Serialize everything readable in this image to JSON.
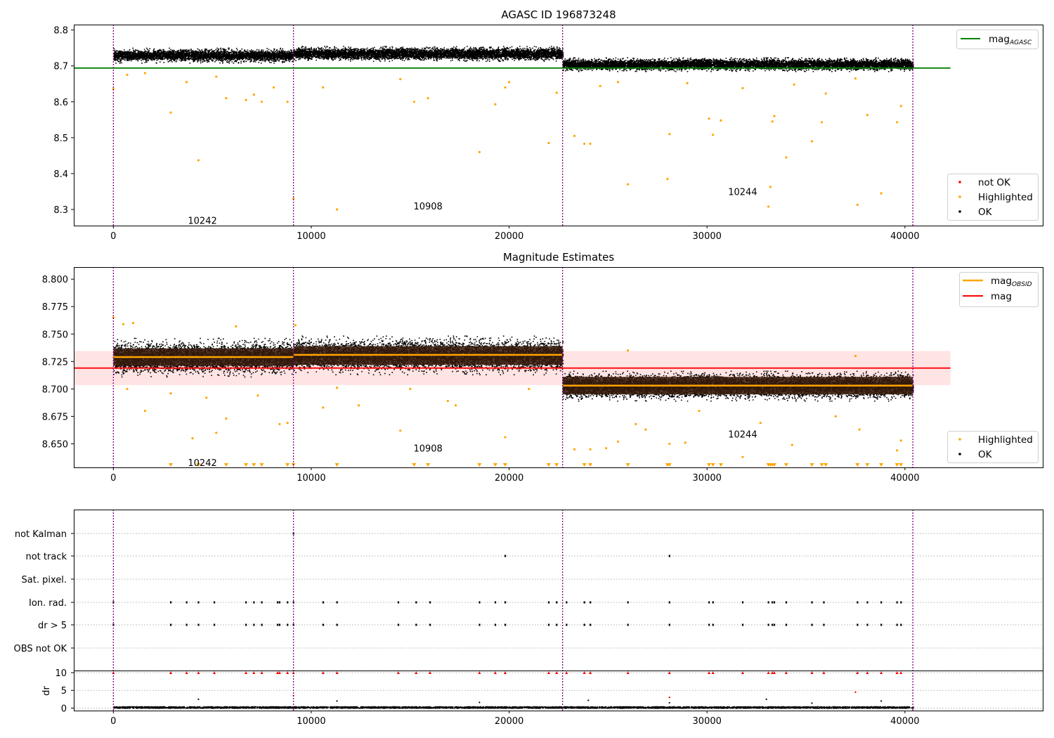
{
  "chart_data": [
    {
      "type": "scatter",
      "title": "AGASC ID 196873248",
      "xlim": [
        -2000,
        47000
      ],
      "ylim": [
        8.255,
        8.815
      ],
      "x_ticks": [
        0,
        10000,
        20000,
        30000,
        40000
      ],
      "x_tick_labels": [
        "0",
        "10000",
        "20000",
        "30000",
        "40000"
      ],
      "y_ticks": [
        8.3,
        8.4,
        8.5,
        8.6,
        8.7,
        8.8
      ],
      "y_tick_labels": [
        "8.3",
        "8.4",
        "8.5",
        "8.6",
        "8.7",
        "8.8"
      ],
      "obsid_boundaries": [
        0,
        9100,
        22700,
        40400
      ],
      "obsid_labels": [
        {
          "text": "10242",
          "x": 4500,
          "y": 8.27
        },
        {
          "text": "10908",
          "x": 15900,
          "y": 8.31
        },
        {
          "text": "10244",
          "x": 31800,
          "y": 8.35
        }
      ],
      "series": [
        {
          "name": "OK",
          "color": "#000000",
          "segments": [
            {
              "x0": 0,
              "x1": 9100,
              "center": 8.73,
              "spread": 0.013
            },
            {
              "x0": 9100,
              "x1": 22700,
              "center": 8.735,
              "spread": 0.013
            },
            {
              "x0": 22700,
              "x1": 40400,
              "center": 8.705,
              "spread": 0.012
            }
          ]
        },
        {
          "name": "Highlighted",
          "color": "#ffa500",
          "points": [
            [
              2900,
              8.57
            ],
            [
              4300,
              8.437
            ],
            [
              5700,
              8.61
            ],
            [
              6700,
              8.605
            ],
            [
              7100,
              8.62
            ],
            [
              7500,
              8.6
            ],
            [
              8100,
              8.64
            ],
            [
              8800,
              8.6
            ],
            [
              3700,
              8.655
            ],
            [
              5200,
              8.67
            ],
            [
              1600,
              8.68
            ],
            [
              700,
              8.675
            ],
            [
              9100,
              8.33
            ],
            [
              10600,
              8.64
            ],
            [
              11300,
              8.3
            ],
            [
              14500,
              8.663
            ],
            [
              15200,
              8.6
            ],
            [
              15900,
              8.61
            ],
            [
              18500,
              8.46
            ],
            [
              19300,
              8.593
            ],
            [
              19800,
              8.64
            ],
            [
              22000,
              8.485
            ],
            [
              22400,
              8.625
            ],
            [
              23300,
              8.505
            ],
            [
              24100,
              8.483
            ],
            [
              23800,
              8.483
            ],
            [
              26000,
              8.37
            ],
            [
              28100,
              8.51
            ],
            [
              28000,
              8.385
            ],
            [
              30100,
              8.553
            ],
            [
              30300,
              8.508
            ],
            [
              30700,
              8.548
            ],
            [
              33100,
              8.308
            ],
            [
              33300,
              8.545
            ],
            [
              33400,
              8.56
            ],
            [
              33200,
              8.363
            ],
            [
              34000,
              8.445
            ],
            [
              35300,
              8.49
            ],
            [
              35800,
              8.543
            ],
            [
              37600,
              8.313
            ],
            [
              38100,
              8.563
            ],
            [
              38800,
              8.345
            ],
            [
              39600,
              8.543
            ],
            [
              39800,
              8.588
            ],
            [
              36000,
              8.623
            ],
            [
              31800,
              8.638
            ],
            [
              25500,
              8.655
            ],
            [
              0,
              8.636
            ],
            [
              20000,
              8.655
            ],
            [
              24600,
              8.644
            ],
            [
              29000,
              8.652
            ],
            [
              34400,
              8.648
            ],
            [
              37500,
              8.665
            ]
          ]
        },
        {
          "name": "not OK",
          "color": "#ff0000",
          "points": []
        },
        {
          "name": "mag_AGASC",
          "color": "#008000",
          "value": 8.694
        }
      ],
      "legend_top": [
        "mag_AGASC"
      ],
      "legend_bottom": [
        "not OK",
        "Highlighted",
        "OK"
      ]
    },
    {
      "type": "scatter",
      "title": "Magnitude Estimates",
      "xlim": [
        -2000,
        47000
      ],
      "ylim": [
        8.6285,
        8.811
      ],
      "x_ticks": [
        0,
        10000,
        20000,
        30000,
        40000
      ],
      "x_tick_labels": [
        "0",
        "10000",
        "20000",
        "30000",
        "40000"
      ],
      "y_ticks": [
        8.65,
        8.675,
        8.7,
        8.725,
        8.75,
        8.775,
        8.8
      ],
      "y_tick_labels": [
        "8.650",
        "8.675",
        "8.700",
        "8.725",
        "8.750",
        "8.775",
        "8.800"
      ],
      "obsid_boundaries": [
        0,
        9100,
        22700,
        40400
      ],
      "obsid_labels": [
        {
          "text": "10242",
          "x": 4500,
          "y": 8.633
        },
        {
          "text": "10908",
          "x": 15900,
          "y": 8.646
        },
        {
          "text": "10244",
          "x": 31800,
          "y": 8.659
        }
      ],
      "mag": {
        "value": 8.719,
        "band": [
          8.7035,
          8.7345
        ],
        "color": "#ff0000"
      },
      "mag_obsid": [
        {
          "x0": 0,
          "x1": 9100,
          "value": 8.729,
          "band": [
            8.721,
            8.737
          ]
        },
        {
          "x0": 9100,
          "x1": 22700,
          "value": 8.731,
          "band": [
            8.722,
            8.739
          ]
        },
        {
          "x0": 22700,
          "x1": 40400,
          "value": 8.703,
          "band": [
            8.695,
            8.711
          ]
        }
      ],
      "series": [
        {
          "name": "OK",
          "color": "#000000",
          "segments": [
            {
              "x0": 0,
              "x1": 9100,
              "center": 8.729,
              "spread": 0.011
            },
            {
              "x0": 9100,
              "x1": 22700,
              "center": 8.731,
              "spread": 0.011
            },
            {
              "x0": 22700,
              "x1": 40400,
              "center": 8.703,
              "spread": 0.0085
            }
          ]
        },
        {
          "name": "Highlighted",
          "color": "#ffa500",
          "points": [
            [
              500,
              8.759
            ],
            [
              700,
              8.7
            ],
            [
              1000,
              8.76
            ],
            [
              1600,
              8.68
            ],
            [
              2900,
              8.696
            ],
            [
              4000,
              8.655
            ],
            [
              4700,
              8.692
            ],
            [
              5200,
              8.66
            ],
            [
              5700,
              8.673
            ],
            [
              6200,
              8.757
            ],
            [
              7300,
              8.694
            ],
            [
              8400,
              8.668
            ],
            [
              8800,
              8.669
            ],
            [
              9200,
              8.758
            ],
            [
              10600,
              8.683
            ],
            [
              11300,
              8.701
            ],
            [
              12400,
              8.685
            ],
            [
              14500,
              8.662
            ],
            [
              15000,
              8.7
            ],
            [
              16900,
              8.689
            ],
            [
              17300,
              8.685
            ],
            [
              19800,
              8.656
            ],
            [
              21000,
              8.7
            ],
            [
              23300,
              8.645
            ],
            [
              24100,
              8.645
            ],
            [
              24900,
              8.646
            ],
            [
              25500,
              8.652
            ],
            [
              26400,
              8.668
            ],
            [
              26900,
              8.663
            ],
            [
              28100,
              8.65
            ],
            [
              28900,
              8.651
            ],
            [
              29600,
              8.68
            ],
            [
              31800,
              8.638
            ],
            [
              32700,
              8.669
            ],
            [
              34300,
              8.649
            ],
            [
              36500,
              8.675
            ],
            [
              37700,
              8.663
            ],
            [
              39600,
              8.644
            ],
            [
              39800,
              8.653
            ],
            [
              26000,
              8.735
            ],
            [
              37500,
              8.73
            ],
            [
              0,
              8.765
            ]
          ]
        },
        {
          "name": "Highlighted (below axis)",
          "color": "#ffa500",
          "points": [
            [
              2900,
              8.6285
            ],
            [
              4300,
              8.6285
            ],
            [
              5700,
              8.6285
            ],
            [
              6700,
              8.6285
            ],
            [
              7100,
              8.6285
            ],
            [
              7500,
              8.6285
            ],
            [
              8800,
              8.6285
            ],
            [
              9100,
              8.6285
            ],
            [
              11300,
              8.6285
            ],
            [
              15200,
              8.6285
            ],
            [
              15900,
              8.6285
            ],
            [
              18500,
              8.6285
            ],
            [
              19300,
              8.6285
            ],
            [
              19800,
              8.6285
            ],
            [
              22000,
              8.6285
            ],
            [
              22400,
              8.6285
            ],
            [
              23800,
              8.6285
            ],
            [
              24100,
              8.6285
            ],
            [
              26000,
              8.6285
            ],
            [
              28000,
              8.6285
            ],
            [
              28100,
              8.6285
            ],
            [
              30100,
              8.6285
            ],
            [
              30300,
              8.6285
            ],
            [
              30700,
              8.6285
            ],
            [
              33100,
              8.6285
            ],
            [
              33200,
              8.6285
            ],
            [
              33300,
              8.6285
            ],
            [
              33400,
              8.6285
            ],
            [
              34000,
              8.6285
            ],
            [
              35300,
              8.6285
            ],
            [
              35800,
              8.6285
            ],
            [
              36000,
              8.6285
            ],
            [
              37600,
              8.6285
            ],
            [
              38100,
              8.6285
            ],
            [
              38800,
              8.6285
            ],
            [
              39600,
              8.6285
            ],
            [
              39800,
              8.6285
            ]
          ]
        }
      ],
      "legend_top": [
        "mag_OBSID",
        "mag"
      ],
      "legend_bottom": [
        "Highlighted",
        "OK"
      ]
    },
    {
      "type": "scatter",
      "xlim": [
        -2000,
        47000
      ],
      "x_ticks": [
        0,
        10000,
        20000,
        30000,
        40000
      ],
      "x_tick_labels": [
        "0",
        "10000",
        "20000",
        "30000",
        "40000"
      ],
      "obsid_boundaries": [
        0,
        9100,
        22700,
        40400
      ],
      "flag_rows": [
        "not Kalman",
        "not track",
        "Sat. pixel.",
        "Ion. rad.",
        "dr > 5",
        "OBS not OK"
      ],
      "flags": {
        "not Kalman": [
          9100
        ],
        "not track": [
          19800,
          28100
        ],
        "Sat. pixel.": [],
        "Ion. rad.": [
          0,
          2900,
          3700,
          4300,
          5100,
          6700,
          7100,
          7500,
          8300,
          8400,
          8800,
          9100,
          10600,
          11300,
          14400,
          15300,
          16000,
          18500,
          19300,
          19800,
          22000,
          22400,
          22900,
          23800,
          24100,
          26000,
          28100,
          30100,
          30300,
          31800,
          33100,
          33300,
          33400,
          34000,
          35300,
          35900,
          37600,
          38100,
          38800,
          39600,
          39800
        ],
        "dr > 5": [
          0,
          2900,
          3700,
          4300,
          5100,
          6700,
          7100,
          7500,
          8300,
          8400,
          8800,
          9100,
          10600,
          11300,
          14400,
          15300,
          16000,
          18500,
          19300,
          19800,
          22000,
          22400,
          22900,
          23800,
          24100,
          26000,
          28100,
          30100,
          30300,
          31800,
          33100,
          33300,
          33400,
          34000,
          35300,
          35900,
          37600,
          38100,
          38800,
          39600,
          39800
        ],
        "OBS not OK": []
      },
      "dr_panel": {
        "ylabel": "dr",
        "ylim": [
          -0.7,
          10.4
        ],
        "y_ticks": [
          0,
          5,
          10
        ],
        "y_tick_labels": [
          "0",
          "5",
          "10"
        ],
        "typical_value": 0.3,
        "red_clipped_at": 10,
        "red_points_x": [
          0,
          2900,
          3700,
          4300,
          5100,
          6700,
          7100,
          7500,
          8300,
          8400,
          8800,
          9100,
          10600,
          11300,
          14400,
          15300,
          16000,
          18500,
          19300,
          19800,
          22000,
          22400,
          22900,
          23800,
          24100,
          26000,
          28100,
          30100,
          30300,
          31800,
          33100,
          33300,
          33400,
          34000,
          35300,
          35900,
          37600,
          38100,
          38800,
          39600,
          39800
        ],
        "red_points_extra": [
          [
            9100,
            3.5
          ],
          [
            28100,
            3.0
          ],
          [
            37500,
            4.5
          ]
        ],
        "black_points_extra": [
          [
            4300,
            2.5
          ],
          [
            28100,
            1.5
          ],
          [
            24000,
            2.2
          ],
          [
            33000,
            2.5
          ],
          [
            38800,
            2.0
          ],
          [
            11300,
            2.0
          ],
          [
            18500,
            1.6
          ],
          [
            35300,
            1.4
          ]
        ]
      }
    }
  ],
  "legend_labels": {
    "mag_agasc_main": "mag",
    "mag_agasc_sub": "AGASC",
    "mag_obsid_main": "mag",
    "mag_obsid_sub": "OBSID",
    "mag": "mag",
    "not_ok": "not OK",
    "highlighted": "Highlighted",
    "ok": "OK"
  },
  "colors": {
    "ok": "#000000",
    "highlighted": "#ffa500",
    "not_ok": "#ff0000",
    "mag_agasc": "#008000",
    "mag": "#ff0000",
    "mag_obsid": "#ffa500",
    "boundary": "#800080",
    "mag_band": "#ffe4e4",
    "obsid_band": "#3a1c0c"
  }
}
